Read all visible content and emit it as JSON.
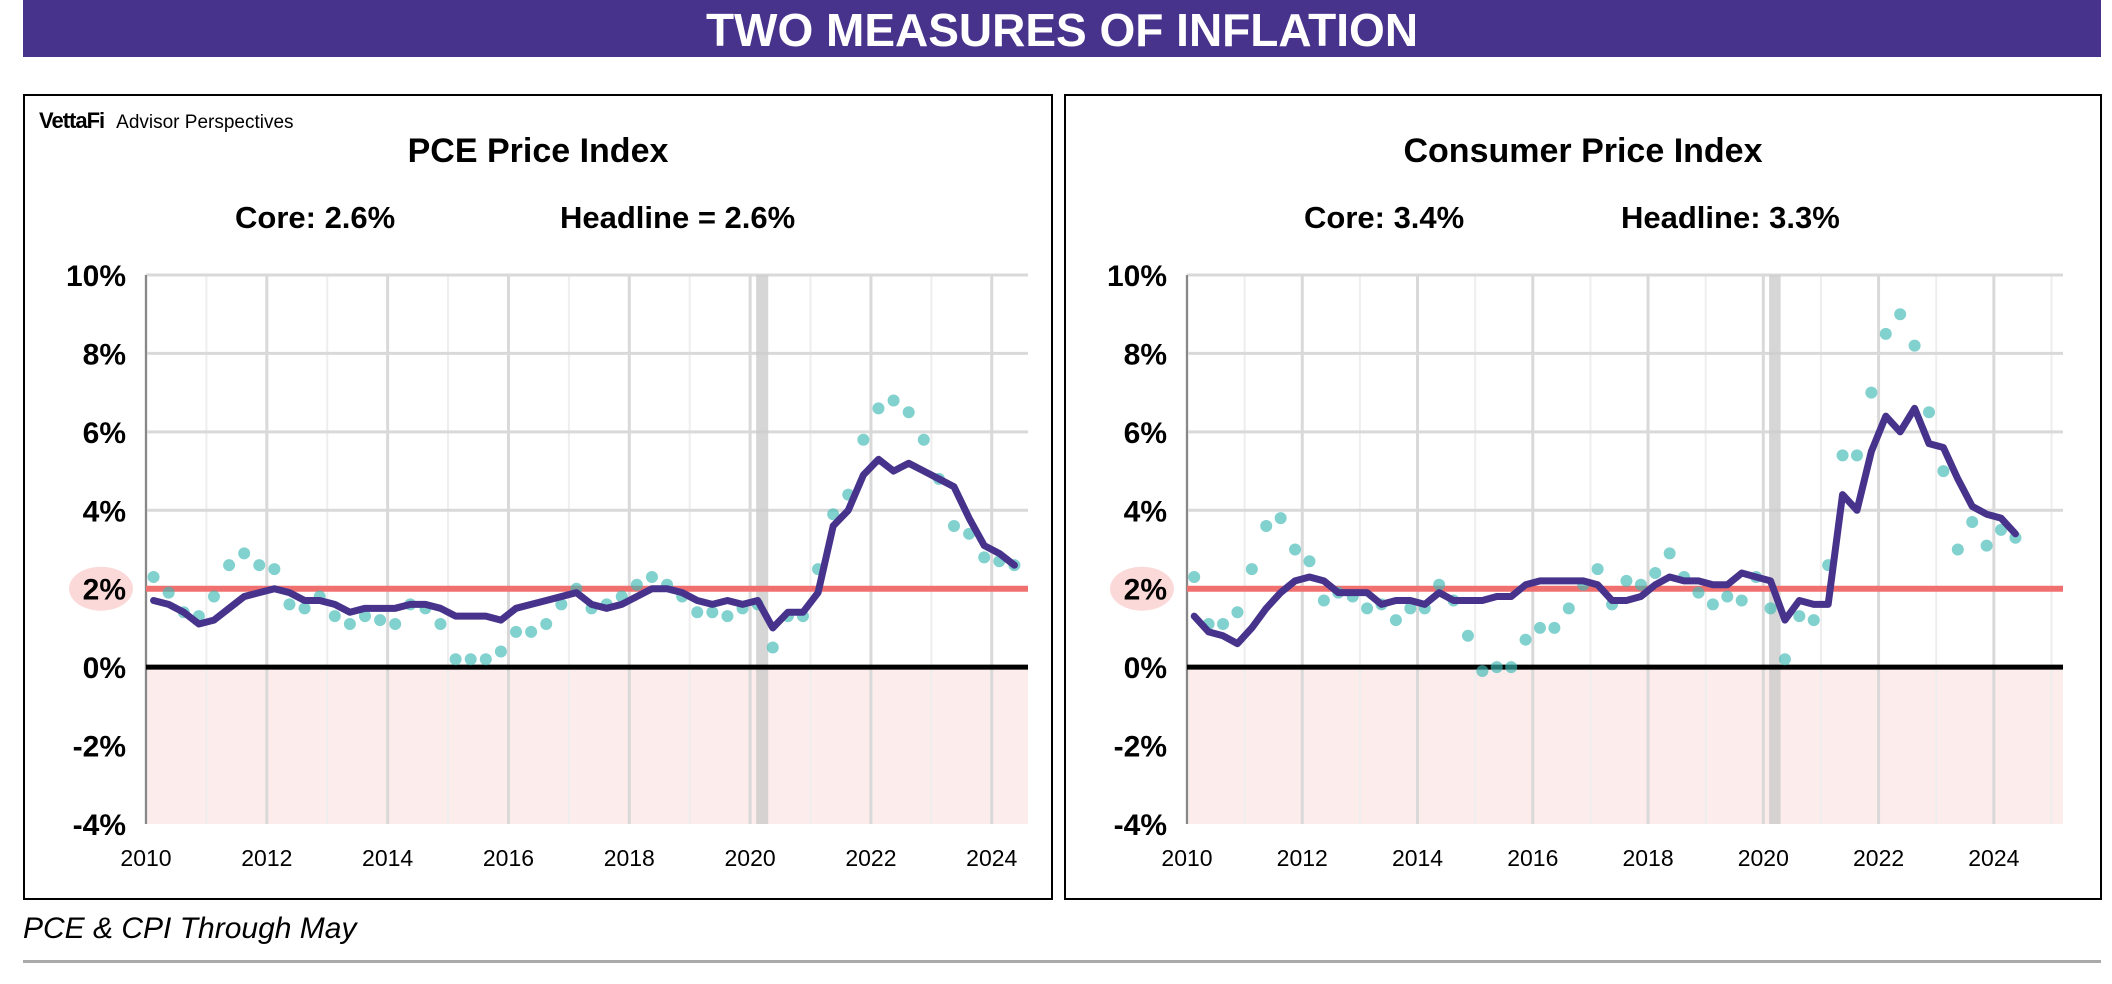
{
  "title": "TWO MEASURES OF INFLATION",
  "logo": {
    "brand": "VettaFi",
    "text": "Advisor Perspectives"
  },
  "footer": "PCE & CPI Through May",
  "colors": {
    "core": "#47338b",
    "headline": "#3db8b3",
    "target": "#f07070",
    "negative_fill": "#fdecec",
    "recession": "#cccccc",
    "title_bar": "#47338b"
  },
  "chart_data": [
    {
      "type": "line",
      "title": "PCE Price Index",
      "core_label": "Core: 2.6%",
      "headline_label": "Headline = 2.6%",
      "ylim": [
        -4,
        10
      ],
      "yticks": [
        "10%",
        "8%",
        "6%",
        "4%",
        "2%",
        "0%",
        "-2%",
        "-4%"
      ],
      "ytick_values": [
        10,
        8,
        6,
        4,
        2,
        0,
        -2,
        -4
      ],
      "xlim": [
        2010,
        2024.6
      ],
      "xticks": [
        "2010",
        "2012",
        "2014",
        "2016",
        "2018",
        "2020",
        "2022",
        "2024"
      ],
      "xtick_values": [
        2010,
        2012,
        2014,
        2016,
        2018,
        2020,
        2022,
        2024
      ],
      "target": 2,
      "recession": [
        2020.1,
        2020.3
      ],
      "x_start": 2010,
      "frequency": "quarterly",
      "series": [
        {
          "name": "Core",
          "style": "line",
          "values": [
            1.7,
            1.6,
            1.4,
            1.1,
            1.2,
            1.5,
            1.8,
            1.9,
            2.0,
            1.9,
            1.7,
            1.7,
            1.6,
            1.4,
            1.5,
            1.5,
            1.5,
            1.6,
            1.6,
            1.5,
            1.3,
            1.3,
            1.3,
            1.2,
            1.5,
            1.6,
            1.7,
            1.8,
            1.9,
            1.6,
            1.5,
            1.6,
            1.8,
            2.0,
            2.0,
            1.9,
            1.7,
            1.6,
            1.7,
            1.6,
            1.7,
            1.0,
            1.4,
            1.4,
            1.9,
            3.6,
            4.0,
            4.9,
            5.3,
            5.0,
            5.2,
            5.0,
            4.8,
            4.6,
            3.8,
            3.1,
            2.9,
            2.6
          ]
        },
        {
          "name": "Headline",
          "style": "dots",
          "values": [
            2.3,
            1.9,
            1.4,
            1.3,
            1.8,
            2.6,
            2.9,
            2.6,
            2.5,
            1.6,
            1.5,
            1.8,
            1.3,
            1.1,
            1.3,
            1.2,
            1.1,
            1.6,
            1.5,
            1.1,
            0.2,
            0.2,
            0.2,
            0.4,
            0.9,
            0.9,
            1.1,
            1.6,
            2.0,
            1.5,
            1.6,
            1.8,
            2.1,
            2.3,
            2.1,
            1.8,
            1.4,
            1.4,
            1.3,
            1.5,
            1.6,
            0.5,
            1.3,
            1.3,
            2.5,
            3.9,
            4.4,
            5.8,
            6.6,
            6.8,
            6.5,
            5.8,
            4.8,
            3.6,
            3.4,
            2.8,
            2.7,
            2.6
          ]
        }
      ]
    },
    {
      "type": "line",
      "title": "Consumer Price Index",
      "core_label": "Core: 3.4%",
      "headline_label": "Headline: 3.3%",
      "ylim": [
        -4,
        10
      ],
      "yticks": [
        "10%",
        "8%",
        "6%",
        "4%",
        "2%",
        "0%",
        "-2%",
        "-4%"
      ],
      "ytick_values": [
        10,
        8,
        6,
        4,
        2,
        0,
        -2,
        -4
      ],
      "xlim": [
        2010,
        2025.2
      ],
      "xticks": [
        "2010",
        "2012",
        "2014",
        "2016",
        "2018",
        "2020",
        "2022",
        "2024"
      ],
      "xtick_values": [
        2010,
        2012,
        2014,
        2016,
        2018,
        2020,
        2022,
        2024
      ],
      "target": 2,
      "recession": [
        2020.1,
        2020.3
      ],
      "x_start": 2010,
      "frequency": "quarterly",
      "series": [
        {
          "name": "Core",
          "style": "line",
          "values": [
            1.3,
            0.9,
            0.8,
            0.6,
            1.0,
            1.5,
            1.9,
            2.2,
            2.3,
            2.2,
            1.9,
            1.9,
            1.9,
            1.6,
            1.7,
            1.7,
            1.6,
            1.9,
            1.7,
            1.7,
            1.7,
            1.8,
            1.8,
            2.1,
            2.2,
            2.2,
            2.2,
            2.2,
            2.1,
            1.7,
            1.7,
            1.8,
            2.1,
            2.3,
            2.2,
            2.2,
            2.1,
            2.1,
            2.4,
            2.3,
            2.2,
            1.2,
            1.7,
            1.6,
            1.6,
            4.4,
            4.0,
            5.5,
            6.4,
            6.0,
            6.6,
            5.7,
            5.6,
            4.8,
            4.1,
            3.9,
            3.8,
            3.4
          ]
        },
        {
          "name": "Headline",
          "style": "dots",
          "values": [
            2.3,
            1.1,
            1.1,
            1.4,
            2.5,
            3.6,
            3.8,
            3.0,
            2.7,
            1.7,
            1.9,
            1.8,
            1.5,
            1.6,
            1.2,
            1.5,
            1.5,
            2.1,
            1.7,
            0.8,
            -0.1,
            0.0,
            0.0,
            0.7,
            1.0,
            1.0,
            1.5,
            2.1,
            2.5,
            1.6,
            2.2,
            2.1,
            2.4,
            2.9,
            2.3,
            1.9,
            1.6,
            1.8,
            1.7,
            2.3,
            1.5,
            0.2,
            1.3,
            1.2,
            2.6,
            5.4,
            5.4,
            7.0,
            8.5,
            9.0,
            8.2,
            6.5,
            5.0,
            3.0,
            3.7,
            3.1,
            3.5,
            3.3
          ]
        }
      ]
    }
  ]
}
